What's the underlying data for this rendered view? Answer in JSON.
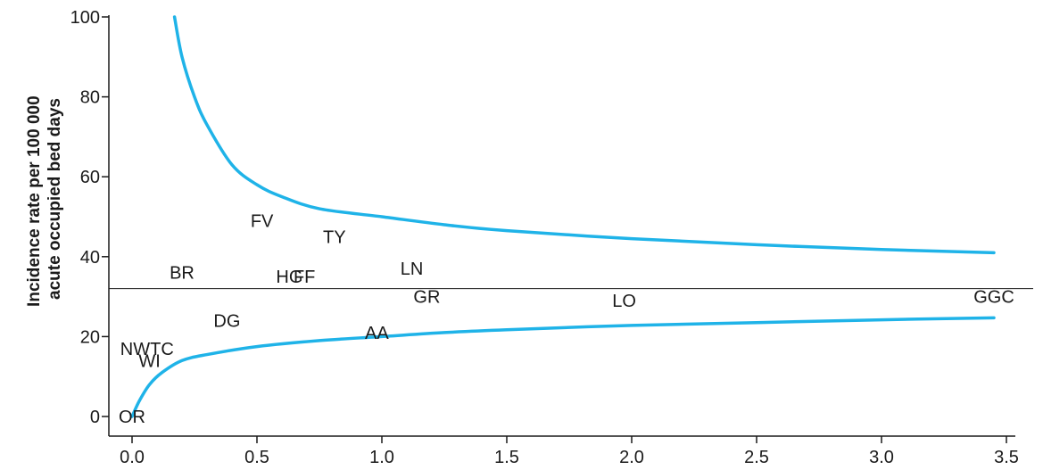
{
  "chart_data": {
    "type": "scatter",
    "title": "",
    "xlabel": "",
    "ylabel_lines": [
      "Incidence rate per 100 000",
      "acute occupied bed days"
    ],
    "xlim": [
      0,
      3.5
    ],
    "ylim": [
      0,
      100
    ],
    "x_ticks": [
      0.0,
      0.5,
      1.0,
      1.5,
      2.0,
      2.5,
      3.0,
      3.5
    ],
    "x_tick_labels": [
      "0.0",
      "0.5",
      "1.0",
      "1.5",
      "2.0",
      "2.5",
      "3.0",
      "3.5"
    ],
    "y_ticks": [
      0,
      20,
      40,
      60,
      80,
      100
    ],
    "y_tick_labels": [
      "0",
      "20",
      "40",
      "60",
      "80",
      "100"
    ],
    "grid": false,
    "mean_line": 32,
    "curve_color": "#1fb3e8",
    "points": [
      {
        "label": "OR",
        "x": 0.0,
        "y": 0
      },
      {
        "label": "WI",
        "x": 0.07,
        "y": 14
      },
      {
        "label": "NWTC",
        "x": 0.06,
        "y": 17
      },
      {
        "label": "DG",
        "x": 0.38,
        "y": 24
      },
      {
        "label": "BR",
        "x": 0.2,
        "y": 36
      },
      {
        "label": "FV",
        "x": 0.52,
        "y": 49
      },
      {
        "label": "TY",
        "x": 0.81,
        "y": 45
      },
      {
        "label": "HG",
        "x": 0.63,
        "y": 35
      },
      {
        "label": "FF",
        "x": 0.69,
        "y": 35
      },
      {
        "label": "LN",
        "x": 1.12,
        "y": 37
      },
      {
        "label": "GR",
        "x": 1.18,
        "y": 30
      },
      {
        "label": "AA",
        "x": 0.98,
        "y": 21
      },
      {
        "label": "LO",
        "x": 1.97,
        "y": 29
      },
      {
        "label": "GGC",
        "x": 3.45,
        "y": 30
      }
    ],
    "upper_curve": [
      {
        "x": 0.17,
        "y": 100
      },
      {
        "x": 0.2,
        "y": 90
      },
      {
        "x": 0.25,
        "y": 80
      },
      {
        "x": 0.3,
        "y": 73
      },
      {
        "x": 0.4,
        "y": 63
      },
      {
        "x": 0.5,
        "y": 58
      },
      {
        "x": 0.6,
        "y": 55
      },
      {
        "x": 0.75,
        "y": 52
      },
      {
        "x": 1.0,
        "y": 50
      },
      {
        "x": 1.25,
        "y": 48
      },
      {
        "x": 1.5,
        "y": 46.5
      },
      {
        "x": 2.0,
        "y": 44.5
      },
      {
        "x": 2.5,
        "y": 43
      },
      {
        "x": 3.0,
        "y": 41.8
      },
      {
        "x": 3.45,
        "y": 41
      }
    ],
    "lower_curve": [
      {
        "x": 0.0,
        "y": 0
      },
      {
        "x": 0.03,
        "y": 4
      },
      {
        "x": 0.07,
        "y": 8
      },
      {
        "x": 0.12,
        "y": 11
      },
      {
        "x": 0.2,
        "y": 14
      },
      {
        "x": 0.3,
        "y": 15.5
      },
      {
        "x": 0.5,
        "y": 17.5
      },
      {
        "x": 0.75,
        "y": 19
      },
      {
        "x": 1.0,
        "y": 20
      },
      {
        "x": 1.25,
        "y": 21
      },
      {
        "x": 1.5,
        "y": 21.7
      },
      {
        "x": 2.0,
        "y": 22.8
      },
      {
        "x": 2.5,
        "y": 23.5
      },
      {
        "x": 3.0,
        "y": 24.2
      },
      {
        "x": 3.45,
        "y": 24.7
      }
    ]
  }
}
